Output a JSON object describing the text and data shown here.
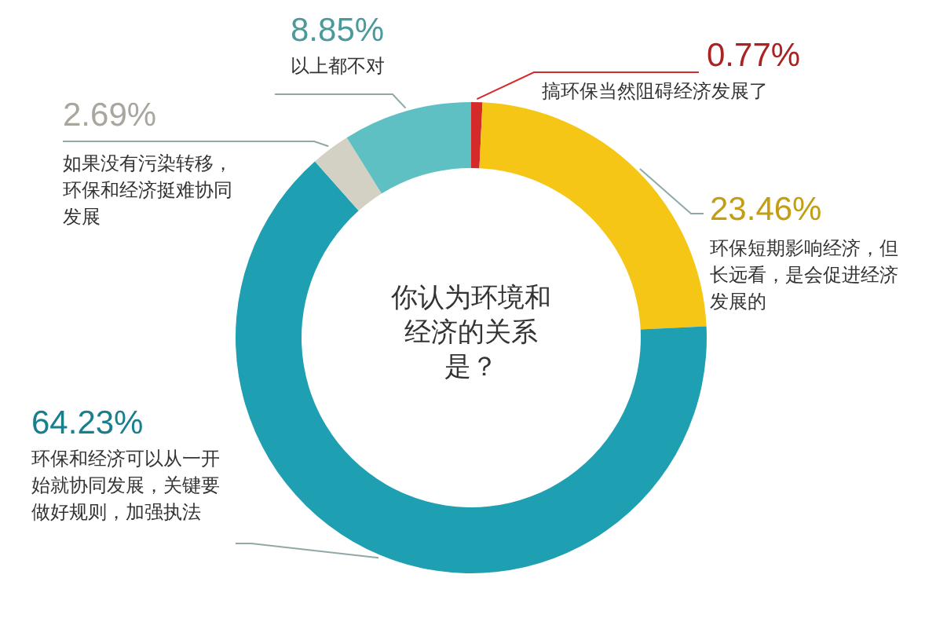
{
  "chart_data": {
    "type": "donut",
    "title": "你认为环境和经济的关系是？",
    "categories": [
      "搞环保当然阻碍经济发展了",
      "环保短期影响经济，但长远看，是会促进经济发展的",
      "环保和经济可以从一开始就协同发展，关键要做好规则，加强执法",
      "如果没有污染转移，环保和经济挺难协同发展",
      "以上都不对"
    ],
    "values": [
      0.77,
      23.46,
      64.23,
      2.69,
      8.85
    ],
    "colors": [
      "#d42a2a",
      "#f5c616",
      "#1e9fb2",
      "#d3d0c4",
      "#5ec0c2"
    ],
    "value_labels": [
      "0.77%",
      "23.46%",
      "64.23%",
      "2.69%",
      "8.85%"
    ]
  }
}
